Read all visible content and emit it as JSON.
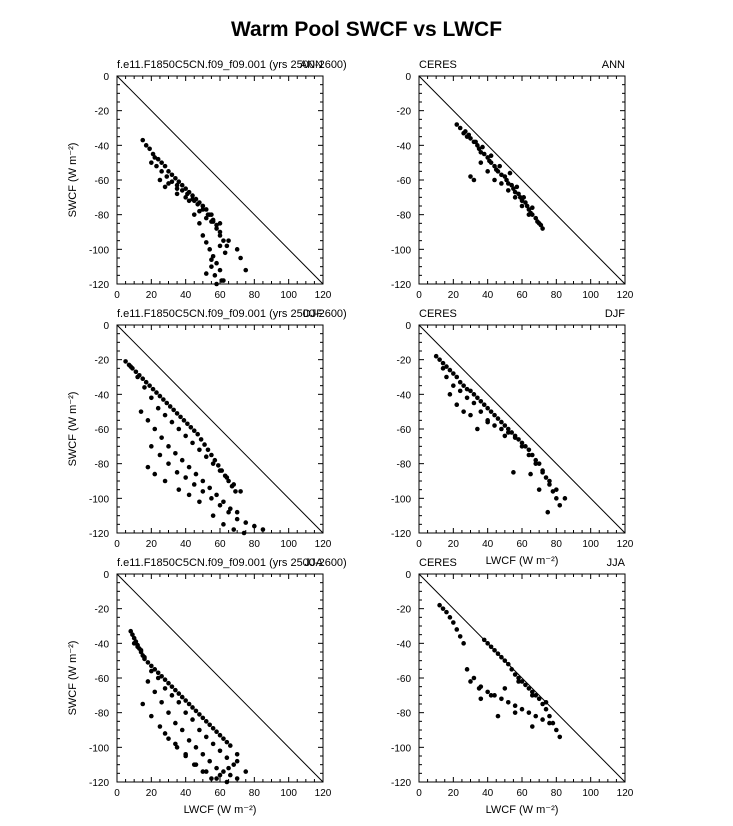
{
  "title": "Warm Pool SWCF vs LWCF",
  "axes": {
    "xlabel": "LWCF (W m⁻²)",
    "ylabel": "SWCF (W m⁻²)",
    "xticks": [
      "0",
      "20",
      "40",
      "60",
      "80",
      "100",
      "120"
    ],
    "yticks": [
      "0",
      "-20",
      "-40",
      "-60",
      "-80",
      "-100",
      "-120"
    ]
  },
  "chart_data": [
    {
      "type": "scatter",
      "left_label": "f.e11.F1850C5CN.f09_f09.001 (yrs 2500-2600)",
      "right_label": "ANN",
      "xlim": [
        0,
        120
      ],
      "ylim": [
        -120,
        0
      ],
      "reference_line": "y = -x",
      "x": [
        15,
        17,
        19,
        21,
        22,
        24,
        26,
        28,
        30,
        32,
        34,
        36,
        38,
        40,
        42,
        44,
        46,
        48,
        50,
        52,
        54,
        56,
        58,
        60,
        20,
        23,
        26,
        29,
        32,
        35,
        38,
        41,
        44,
        47,
        50,
        53,
        56,
        25,
        30,
        35,
        40,
        45,
        50,
        55,
        60,
        28,
        35,
        42,
        48,
        52,
        55,
        58,
        60,
        62,
        64,
        45,
        48,
        50,
        52,
        54,
        56,
        58,
        60,
        62,
        55,
        57,
        65,
        70,
        72,
        75,
        60,
        63,
        55,
        52,
        58,
        61
      ],
      "y": [
        -37,
        -40,
        -42,
        -45,
        -47,
        -48,
        -50,
        -52,
        -55,
        -57,
        -59,
        -61,
        -63,
        -65,
        -67,
        -69,
        -71,
        -73,
        -75,
        -77,
        -80,
        -83,
        -86,
        -90,
        -50,
        -52,
        -55,
        -58,
        -61,
        -63,
        -66,
        -68,
        -71,
        -74,
        -77,
        -80,
        -84,
        -60,
        -62,
        -65,
        -70,
        -72,
        -75,
        -80,
        -85,
        -64,
        -68,
        -72,
        -78,
        -82,
        -84,
        -88,
        -92,
        -95,
        -98,
        -80,
        -85,
        -92,
        -96,
        -100,
        -104,
        -108,
        -112,
        -118,
        -110,
        -115,
        -95,
        -100,
        -105,
        -112,
        -98,
        -102,
        -106,
        -114,
        -120,
        -118
      ]
    },
    {
      "type": "scatter",
      "left_label": "CERES",
      "right_label": "ANN",
      "xlim": [
        0,
        120
      ],
      "ylim": [
        -120,
        0
      ],
      "reference_line": "y = -x",
      "x": [
        22,
        24,
        26,
        28,
        30,
        32,
        34,
        35,
        36,
        38,
        40,
        41,
        42,
        44,
        45,
        46,
        48,
        50,
        51,
        52,
        54,
        55,
        56,
        58,
        59,
        60,
        62,
        63,
        64,
        65,
        66,
        68,
        70,
        72,
        30,
        32,
        36,
        40,
        44,
        48,
        52,
        56,
        60,
        64,
        27,
        29,
        33,
        37,
        42,
        47,
        53,
        57,
        61,
        66,
        69,
        71
      ],
      "y": [
        -28,
        -30,
        -33,
        -35,
        -36,
        -38,
        -40,
        -42,
        -44,
        -45,
        -47,
        -49,
        -50,
        -52,
        -54,
        -55,
        -57,
        -58,
        -60,
        -62,
        -63,
        -65,
        -67,
        -68,
        -70,
        -72,
        -73,
        -75,
        -77,
        -79,
        -80,
        -82,
        -85,
        -88,
        -58,
        -60,
        -50,
        -55,
        -60,
        -62,
        -66,
        -70,
        -75,
        -80,
        -32,
        -34,
        -38,
        -41,
        -46,
        -52,
        -56,
        -64,
        -70,
        -76,
        -84,
        -86
      ]
    },
    {
      "type": "scatter",
      "left_label": "f.e11.F1850C5CN.f09_f09.001 (yrs 2500-2600)",
      "right_label": "DJF",
      "xlim": [
        0,
        120
      ],
      "ylim": [
        -120,
        0
      ],
      "reference_line": "y = -x",
      "x": [
        5,
        7,
        9,
        11,
        13,
        15,
        17,
        19,
        21,
        23,
        25,
        27,
        29,
        31,
        33,
        35,
        37,
        39,
        41,
        43,
        45,
        47,
        49,
        51,
        53,
        55,
        57,
        59,
        61,
        63,
        65,
        67,
        69,
        8,
        12,
        16,
        20,
        24,
        28,
        32,
        36,
        40,
        44,
        48,
        52,
        56,
        60,
        64,
        68,
        72,
        14,
        18,
        22,
        26,
        30,
        34,
        38,
        42,
        46,
        50,
        54,
        58,
        62,
        66,
        70,
        20,
        25,
        30,
        35,
        40,
        45,
        50,
        55,
        60,
        65,
        70,
        75,
        80,
        85,
        18,
        22,
        28,
        36,
        42,
        48,
        56,
        62,
        68,
        74
      ],
      "y": [
        -21,
        -23,
        -25,
        -27,
        -29,
        -31,
        -33,
        -35,
        -37,
        -39,
        -41,
        -43,
        -45,
        -47,
        -49,
        -51,
        -53,
        -55,
        -57,
        -59,
        -61,
        -63,
        -66,
        -69,
        -72,
        -75,
        -78,
        -81,
        -84,
        -87,
        -90,
        -93,
        -96,
        -24,
        -30,
        -36,
        -42,
        -48,
        -52,
        -56,
        -60,
        -64,
        -68,
        -72,
        -76,
        -80,
        -84,
        -88,
        -92,
        -96,
        -50,
        -55,
        -60,
        -65,
        -70,
        -74,
        -78,
        -82,
        -86,
        -90,
        -94,
        -98,
        -102,
        -106,
        -108,
        -70,
        -75,
        -80,
        -85,
        -88,
        -92,
        -96,
        -100,
        -104,
        -108,
        -112,
        -114,
        -116,
        -118,
        -82,
        -86,
        -90,
        -95,
        -98,
        -102,
        -110,
        -115,
        -118,
        -120
      ]
    },
    {
      "type": "scatter",
      "left_label": "CERES",
      "right_label": "DJF",
      "xlim": [
        0,
        120
      ],
      "ylim": [
        -120,
        0
      ],
      "reference_line": "y = -x",
      "x": [
        10,
        12,
        14,
        16,
        18,
        20,
        22,
        24,
        26,
        28,
        30,
        32,
        34,
        36,
        38,
        40,
        42,
        44,
        46,
        48,
        50,
        52,
        54,
        56,
        58,
        60,
        62,
        64,
        66,
        68,
        70,
        72,
        74,
        76,
        78,
        80,
        82,
        16,
        20,
        24,
        28,
        32,
        36,
        40,
        44,
        48,
        52,
        56,
        60,
        64,
        68,
        72,
        76,
        80,
        14,
        18,
        22,
        26,
        30,
        34,
        40,
        50,
        55,
        65,
        70,
        75,
        85
      ],
      "y": [
        -18,
        -20,
        -22,
        -24,
        -26,
        -28,
        -30,
        -33,
        -35,
        -37,
        -38,
        -40,
        -42,
        -44,
        -46,
        -48,
        -50,
        -52,
        -54,
        -56,
        -58,
        -60,
        -62,
        -64,
        -66,
        -68,
        -70,
        -72,
        -75,
        -78,
        -80,
        -84,
        -88,
        -92,
        -96,
        -100,
        -104,
        -30,
        -35,
        -38,
        -42,
        -45,
        -50,
        -55,
        -58,
        -60,
        -62,
        -65,
        -70,
        -75,
        -80,
        -85,
        -90,
        -95,
        -25,
        -40,
        -46,
        -50,
        -52,
        -60,
        -56,
        -64,
        -85,
        -86,
        -95,
        -108,
        -100
      ]
    },
    {
      "type": "scatter",
      "left_label": "f.e11.F1850C5CN.f09_f09.001 (yrs 2500-2600)",
      "right_label": "JJA",
      "xlim": [
        0,
        120
      ],
      "ylim": [
        -120,
        0
      ],
      "reference_line": "y = -x",
      "x": [
        8,
        9,
        10,
        11,
        12,
        13,
        14,
        15,
        16,
        18,
        20,
        22,
        24,
        26,
        28,
        30,
        32,
        34,
        36,
        38,
        40,
        42,
        44,
        46,
        48,
        50,
        52,
        54,
        56,
        58,
        60,
        62,
        64,
        66,
        10,
        12,
        14,
        16,
        20,
        24,
        28,
        32,
        36,
        40,
        44,
        48,
        52,
        56,
        60,
        64,
        68,
        18,
        22,
        26,
        30,
        34,
        38,
        42,
        46,
        50,
        54,
        58,
        62,
        66,
        70,
        15,
        20,
        25,
        30,
        35,
        40,
        45,
        50,
        55,
        60,
        65,
        70,
        75,
        28,
        34,
        40,
        46,
        52,
        58,
        64,
        70
      ],
      "y": [
        -33,
        -35,
        -37,
        -39,
        -41,
        -43,
        -45,
        -47,
        -49,
        -51,
        -53,
        -55,
        -57,
        -59,
        -61,
        -63,
        -65,
        -67,
        -69,
        -71,
        -73,
        -75,
        -77,
        -79,
        -81,
        -83,
        -85,
        -87,
        -89,
        -91,
        -93,
        -95,
        -97,
        -99,
        -40,
        -42,
        -44,
        -48,
        -56,
        -60,
        -66,
        -70,
        -74,
        -80,
        -84,
        -90,
        -94,
        -98,
        -102,
        -106,
        -110,
        -62,
        -68,
        -74,
        -80,
        -86,
        -90,
        -96,
        -100,
        -104,
        -108,
        -112,
        -114,
        -116,
        -118,
        -75,
        -82,
        -88,
        -95,
        -100,
        -105,
        -110,
        -114,
        -118,
        -116,
        -112,
        -108,
        -114,
        -92,
        -98,
        -104,
        -110,
        -114,
        -118,
        -120,
        -104
      ]
    },
    {
      "type": "scatter",
      "left_label": "CERES",
      "right_label": "JJA",
      "xlim": [
        0,
        120
      ],
      "ylim": [
        -120,
        0
      ],
      "reference_line": "y = -x",
      "x": [
        12,
        14,
        16,
        18,
        20,
        22,
        24,
        26,
        38,
        40,
        42,
        44,
        46,
        48,
        50,
        52,
        54,
        56,
        58,
        60,
        62,
        64,
        66,
        68,
        70,
        72,
        74,
        76,
        78,
        80,
        82,
        28,
        32,
        36,
        40,
        44,
        48,
        52,
        56,
        60,
        64,
        68,
        72,
        76,
        30,
        35,
        42,
        50,
        58,
        66,
        74,
        36,
        46,
        56,
        66
      ],
      "y": [
        -18,
        -20,
        -22,
        -25,
        -28,
        -32,
        -36,
        -40,
        -38,
        -40,
        -42,
        -44,
        -46,
        -48,
        -50,
        -52,
        -55,
        -58,
        -60,
        -62,
        -64,
        -66,
        -68,
        -70,
        -72,
        -75,
        -78,
        -82,
        -86,
        -90,
        -94,
        -55,
        -60,
        -65,
        -68,
        -70,
        -72,
        -74,
        -76,
        -78,
        -80,
        -82,
        -84,
        -86,
        -62,
        -66,
        -70,
        -66,
        -62,
        -70,
        -74,
        -72,
        -82,
        -80,
        -88
      ]
    }
  ]
}
